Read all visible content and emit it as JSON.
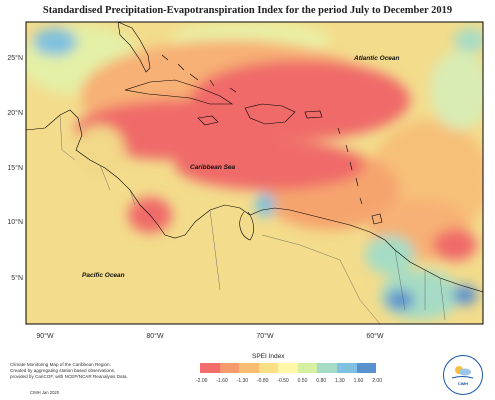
{
  "title": "Standardised Precipitation-Evapotranspiration Index for the period July to December 2019",
  "labels": {
    "atlantic": "Atlantic Ocean",
    "caribbean": "Caribbean Sea",
    "pacific": "Pacific Ocean"
  },
  "lat_ticks": [
    "25°N",
    "20°N",
    "15°N",
    "10°N",
    "5°N"
  ],
  "lon_ticks": [
    "90°W",
    "80°W",
    "70°W",
    "60°W"
  ],
  "footer": {
    "line1": "Climate Monitoring Map of the Caribbean Region.",
    "line2": "Created by aggregating station based observations,",
    "line3": "provided by CariCOF, with NCEP/NCAR Reanalysis Data.",
    "copyright": "CIMH Jan 2020"
  },
  "legend": {
    "title": "SPEI Index",
    "ticks": [
      "-2.00",
      "-1.60",
      "-1.30",
      "-0.80",
      "-0.50",
      "0.50",
      "0.80",
      "1.30",
      "1.60",
      "2.00"
    ],
    "colors": [
      "#f26d6b",
      "#f49a6c",
      "#f7bd73",
      "#fbdf85",
      "#fff6a8",
      "#d6efa0",
      "#a6dcc5",
      "#7fc1de",
      "#5a91cf"
    ]
  },
  "logo_text": "CIMH",
  "colors": {
    "ocean_bg": "#f2d889",
    "frame": "#000000"
  }
}
